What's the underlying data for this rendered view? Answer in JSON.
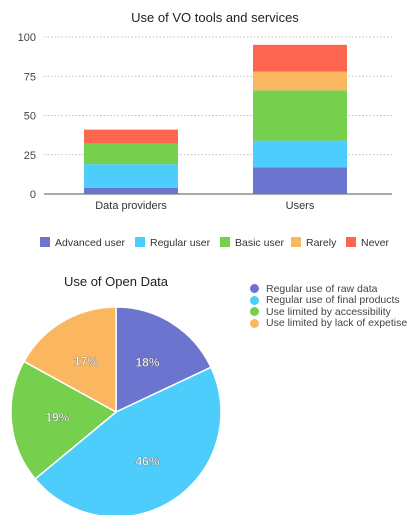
{
  "chart_data": [
    {
      "type": "bar",
      "stacked": true,
      "title": "Use of VO tools and services",
      "categories": [
        "Data providers",
        "Users"
      ],
      "ylim": [
        0,
        100
      ],
      "yticks": [
        "0",
        "25",
        "50",
        "75",
        "100"
      ],
      "grid": true,
      "legend_position": "bottom",
      "series": [
        {
          "name": "Advanced user",
          "color": "#6b74cf",
          "values": [
            4,
            17
          ]
        },
        {
          "name": "Regular user",
          "color": "#4dcdfb",
          "values": [
            15,
            17
          ]
        },
        {
          "name": "Basic user",
          "color": "#77cf4e",
          "values": [
            13,
            32
          ]
        },
        {
          "name": "Rarely",
          "color": "#fbb760",
          "values": [
            0,
            12
          ]
        },
        {
          "name": "Never",
          "color": "#fc6650",
          "values": [
            9,
            17
          ]
        }
      ]
    },
    {
      "type": "pie",
      "title": "Use of Open Data",
      "legend_position": "right",
      "slices": [
        {
          "name": "Regular use of raw data",
          "value": 18,
          "label": "18%",
          "color": "#6b74cf"
        },
        {
          "name": "Regular use of final products",
          "value": 46,
          "label": "46%",
          "color": "#4dcdfb"
        },
        {
          "name": "Use limited by accessibility",
          "value": 19,
          "label": "19%",
          "color": "#77cf4e"
        },
        {
          "name": "Use limited by lack of expetise",
          "value": 17,
          "label": "17%",
          "color": "#fbb760"
        }
      ]
    }
  ]
}
